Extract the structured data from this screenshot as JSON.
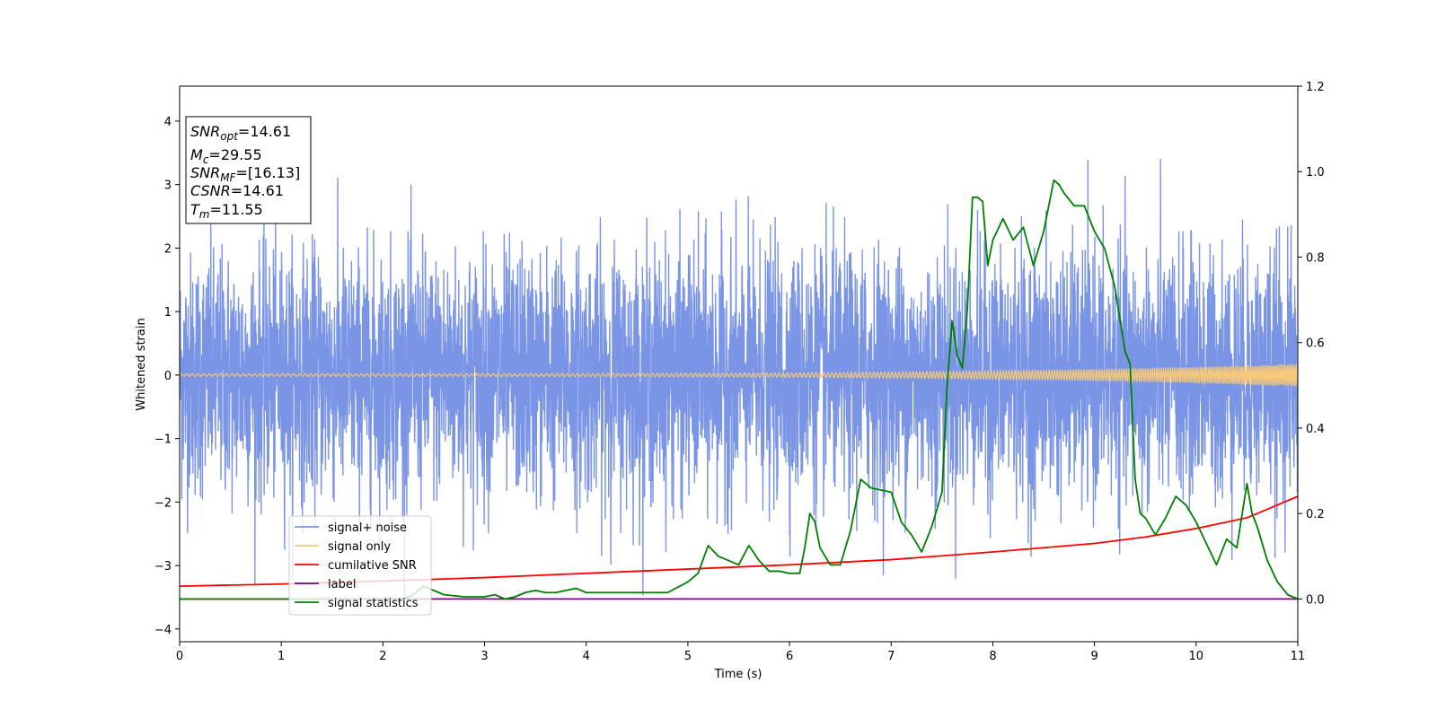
{
  "chart_data": {
    "type": "line",
    "xlabel": "Time (s)",
    "ylabel": "Whitened strain",
    "xlim": [
      0,
      11
    ],
    "ylim": [
      -4.2,
      4.55
    ],
    "y2lim": [
      -0.1,
      1.2
    ],
    "xticks": [
      0,
      1,
      2,
      3,
      4,
      5,
      6,
      7,
      8,
      9,
      10,
      11
    ],
    "yticks": [
      -4,
      -3,
      -2,
      -1,
      0,
      1,
      2,
      3,
      4
    ],
    "y2ticks": [
      0.0,
      0.2,
      0.4,
      0.6,
      0.8,
      1.0,
      1.2
    ],
    "y2tick_labels": [
      "0.0",
      "0.2",
      "0.4",
      "0.6",
      "0.8",
      "1.0",
      "1.2"
    ],
    "grid": false,
    "legend_position": "lower-left",
    "info_box": {
      "lines": [
        {
          "main": "SNR",
          "sub": "opt",
          "value": "=14.61"
        },
        {
          "main": "M",
          "sub": "c",
          "value": "=29.55"
        },
        {
          "main": "SNR",
          "sub": "MF",
          "value": "=[16.13]"
        },
        {
          "main": "CSNR",
          "sub": "",
          "value": "=14.61"
        },
        {
          "main": "T",
          "sub": "m",
          "value": "=11.55"
        }
      ]
    },
    "series": [
      {
        "name": "signal+ noise",
        "axis": "left",
        "color": "#7a94e6",
        "kind": "noise",
        "amplitude_std": 0.95,
        "envelope_max": 3.47
      },
      {
        "name": "signal only",
        "axis": "left",
        "color": "#f5c87a",
        "kind": "chirp",
        "amplitude_start": 0.02,
        "amplitude_end": 0.18
      },
      {
        "name": "cumilative SNR",
        "axis": "right",
        "color": "#ff0000",
        "x": [
          0,
          1,
          2,
          3,
          4,
          5,
          6,
          7,
          8,
          9,
          9.5,
          10,
          10.5,
          11
        ],
        "values": [
          0.03,
          0.035,
          0.042,
          0.05,
          0.06,
          0.07,
          0.08,
          0.092,
          0.11,
          0.13,
          0.145,
          0.165,
          0.19,
          0.24
        ]
      },
      {
        "name": "label",
        "axis": "right",
        "color": "#800080",
        "x": [
          0,
          11
        ],
        "values": [
          0.0,
          0.0
        ]
      },
      {
        "name": "signal statistics",
        "axis": "right",
        "color": "#008000",
        "x": [
          0,
          2.2,
          2.3,
          2.4,
          2.5,
          2.6,
          2.8,
          3.0,
          3.1,
          3.2,
          3.3,
          3.4,
          3.5,
          3.6,
          3.7,
          3.8,
          3.9,
          4.0,
          4.2,
          4.5,
          4.8,
          5.0,
          5.1,
          5.2,
          5.3,
          5.4,
          5.5,
          5.6,
          5.7,
          5.8,
          5.9,
          6.0,
          6.1,
          6.15,
          6.2,
          6.25,
          6.3,
          6.4,
          6.5,
          6.6,
          6.7,
          6.8,
          6.9,
          7.0,
          7.1,
          7.2,
          7.3,
          7.4,
          7.5,
          7.55,
          7.6,
          7.65,
          7.7,
          7.75,
          7.8,
          7.85,
          7.9,
          7.95,
          8.0,
          8.1,
          8.2,
          8.3,
          8.4,
          8.5,
          8.6,
          8.65,
          8.7,
          8.8,
          8.9,
          9.0,
          9.05,
          9.1,
          9.2,
          9.3,
          9.35,
          9.4,
          9.45,
          9.5,
          9.6,
          9.7,
          9.8,
          9.9,
          10.0,
          10.1,
          10.2,
          10.3,
          10.4,
          10.5,
          10.55,
          10.6,
          10.7,
          10.8,
          10.9,
          11.0
        ],
        "values": [
          0.0,
          0.0,
          0.01,
          0.03,
          0.02,
          0.01,
          0.005,
          0.005,
          0.01,
          0.0,
          0.005,
          0.015,
          0.02,
          0.015,
          0.015,
          0.02,
          0.025,
          0.015,
          0.015,
          0.015,
          0.015,
          0.04,
          0.06,
          0.125,
          0.1,
          0.09,
          0.08,
          0.125,
          0.09,
          0.065,
          0.065,
          0.06,
          0.06,
          0.12,
          0.2,
          0.18,
          0.12,
          0.08,
          0.08,
          0.16,
          0.28,
          0.26,
          0.255,
          0.25,
          0.18,
          0.15,
          0.11,
          0.17,
          0.25,
          0.5,
          0.65,
          0.57,
          0.54,
          0.68,
          0.94,
          0.94,
          0.93,
          0.78,
          0.84,
          0.89,
          0.84,
          0.87,
          0.78,
          0.86,
          0.98,
          0.97,
          0.95,
          0.92,
          0.92,
          0.86,
          0.84,
          0.82,
          0.73,
          0.58,
          0.55,
          0.28,
          0.2,
          0.19,
          0.15,
          0.19,
          0.24,
          0.22,
          0.18,
          0.13,
          0.08,
          0.14,
          0.12,
          0.27,
          0.2,
          0.17,
          0.09,
          0.04,
          0.01,
          0.0
        ]
      }
    ]
  }
}
